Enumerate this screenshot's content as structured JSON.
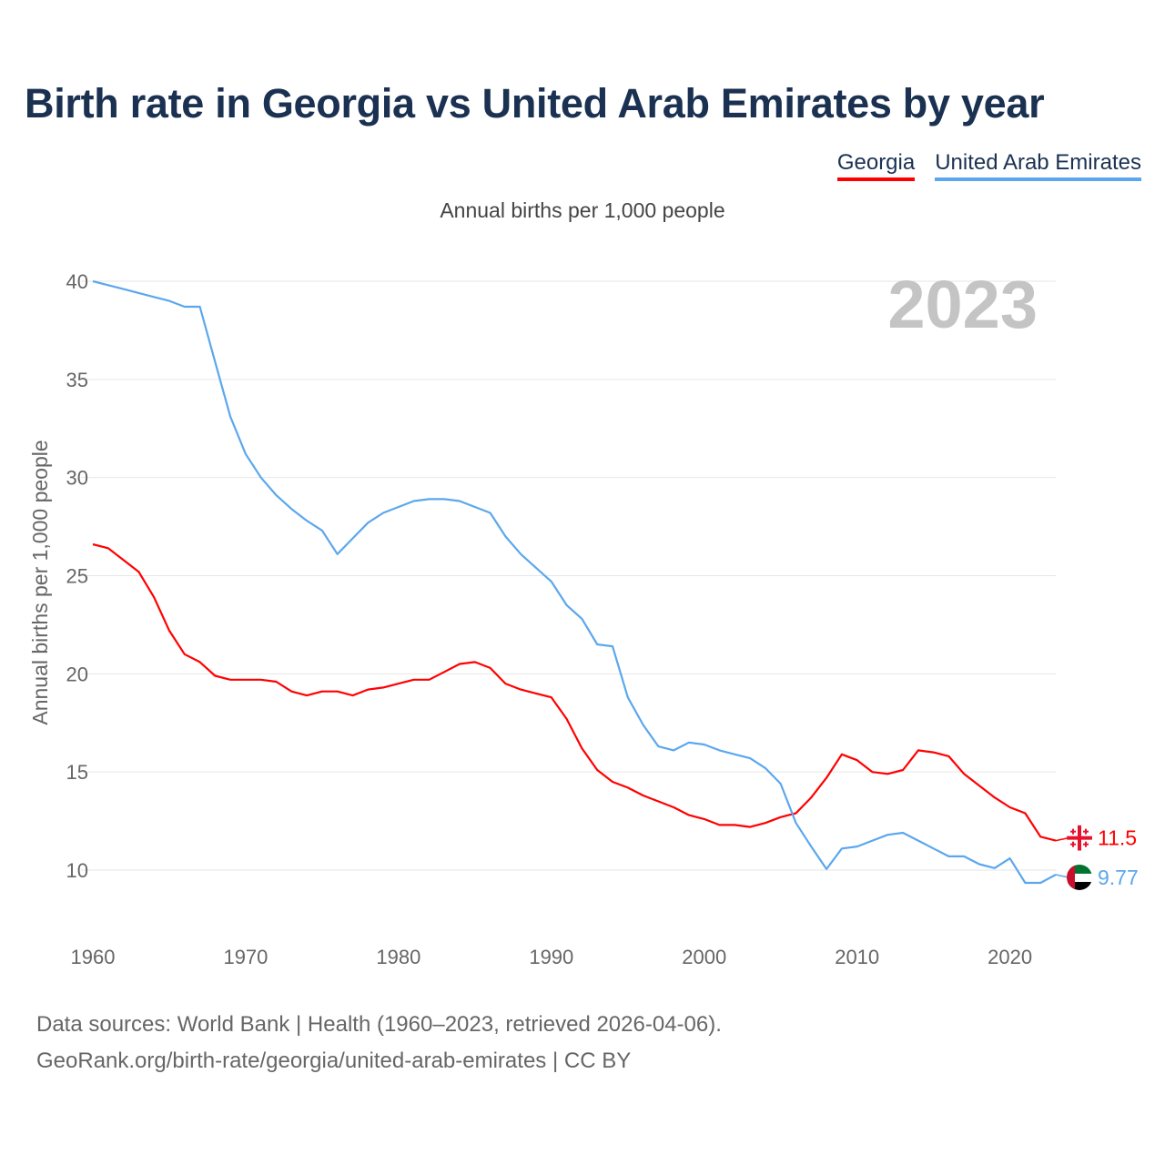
{
  "title": "Birth rate in Georgia vs United Arab Emirates by year",
  "legend": [
    {
      "label": "Georgia",
      "color": "#ff0000"
    },
    {
      "label": "United Arab Emirates",
      "color": "#5ba7ee"
    }
  ],
  "subtitle": "Annual births per 1,000 people",
  "year_watermark": "2023",
  "footer": {
    "line1": "Data sources: World Bank | Health (1960–2023, retrieved 2026-04-06).",
    "line2": "GeoRank.org/birth-rate/georgia/united-arab-emirates | CC BY"
  },
  "chart_data": {
    "type": "line",
    "title": "Birth rate in Georgia vs United Arab Emirates by year",
    "xlabel": "",
    "ylabel": "Annual births per 1,000 people",
    "xlim": [
      1960,
      2023
    ],
    "ylim": [
      7,
      41
    ],
    "x_ticks": [
      "1960",
      "1970",
      "1980",
      "1990",
      "2000",
      "2010",
      "2020"
    ],
    "y_ticks": [
      "10",
      "15",
      "20",
      "25",
      "30",
      "35",
      "40"
    ],
    "grid": true,
    "legend_position": "top-right",
    "x_start": 1960,
    "series": [
      {
        "name": "Georgia",
        "color": "#ff0000",
        "end_label": "11.5",
        "values": [
          26.6,
          26.4,
          25.8,
          25.2,
          23.9,
          22.2,
          21.0,
          20.6,
          19.9,
          19.7,
          19.7,
          19.7,
          19.6,
          19.1,
          18.9,
          19.1,
          19.1,
          18.9,
          19.2,
          19.3,
          19.5,
          19.7,
          19.7,
          20.1,
          20.5,
          20.6,
          20.3,
          19.5,
          19.2,
          19.0,
          18.8,
          17.7,
          16.2,
          15.1,
          14.5,
          14.2,
          13.8,
          13.5,
          13.2,
          12.8,
          12.6,
          12.3,
          12.3,
          12.2,
          12.4,
          12.7,
          12.9,
          13.7,
          14.7,
          15.9,
          15.6,
          15.0,
          14.9,
          15.1,
          16.1,
          16.0,
          15.8,
          14.9,
          14.3,
          13.7,
          13.2,
          12.9,
          11.7,
          11.5
        ]
      },
      {
        "name": "United Arab Emirates",
        "color": "#5ba7ee",
        "end_label": "9.77",
        "values": [
          40.0,
          39.8,
          39.6,
          39.4,
          39.2,
          39.0,
          38.7,
          38.7,
          35.9,
          33.1,
          31.2,
          30.0,
          29.1,
          28.4,
          27.8,
          27.3,
          26.1,
          26.9,
          27.7,
          28.2,
          28.5,
          28.8,
          28.9,
          28.9,
          28.8,
          28.5,
          28.2,
          27.0,
          26.1,
          25.4,
          24.7,
          23.5,
          22.8,
          21.5,
          21.4,
          18.8,
          17.4,
          16.3,
          16.1,
          16.5,
          16.4,
          16.1,
          15.9,
          15.7,
          15.2,
          14.4,
          12.4,
          11.2,
          10.05,
          11.1,
          11.2,
          11.5,
          11.8,
          11.9,
          11.5,
          11.1,
          10.7,
          10.7,
          10.3,
          10.1,
          10.6,
          9.35,
          9.35,
          9.77
        ]
      }
    ]
  }
}
